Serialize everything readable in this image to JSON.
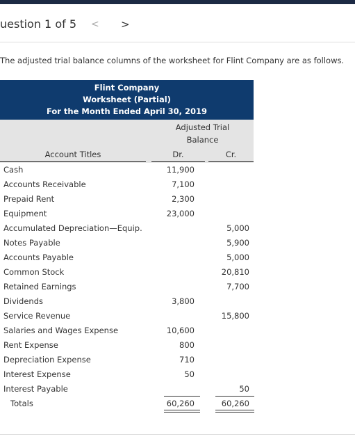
{
  "nav": {
    "question": "uestion 1 of 5",
    "prev": "<",
    "next": ">"
  },
  "intro": "The adjusted trial balance columns of the worksheet for Flint Company are as follows.",
  "table": {
    "title": [
      "Flint Company",
      "Worksheet (Partial)",
      "For the Month Ended April 30, 2019"
    ],
    "group_header": [
      "Adjusted Trial",
      "Balance"
    ],
    "columns": [
      "Account Titles",
      "Dr.",
      "Cr."
    ],
    "rows": [
      [
        "Cash",
        "11,900",
        null
      ],
      [
        "Accounts Receivable",
        "7,100",
        null
      ],
      [
        "Prepaid Rent",
        "2,300",
        null
      ],
      [
        "Equipment",
        "23,000",
        null
      ],
      [
        "Accumulated Depreciation—Equip.",
        null,
        "5,000"
      ],
      [
        "Notes Payable",
        null,
        "5,900"
      ],
      [
        "Accounts Payable",
        null,
        "5,000"
      ],
      [
        "Common Stock",
        null,
        "20,810"
      ],
      [
        "Retained Earnings",
        null,
        "7,700"
      ],
      [
        "Dividends",
        "3,800",
        null
      ],
      [
        "Service Revenue",
        null,
        "15,800"
      ],
      [
        "Salaries and Wages Expense",
        "10,600",
        null
      ],
      [
        "Rent Expense",
        "800",
        null
      ],
      [
        "Depreciation Expense",
        "710",
        null
      ],
      [
        "Interest Expense",
        "50",
        null
      ],
      [
        "Interest Payable",
        null,
        "50"
      ]
    ],
    "totals": [
      "Totals",
      "60,260",
      "60,260"
    ]
  }
}
